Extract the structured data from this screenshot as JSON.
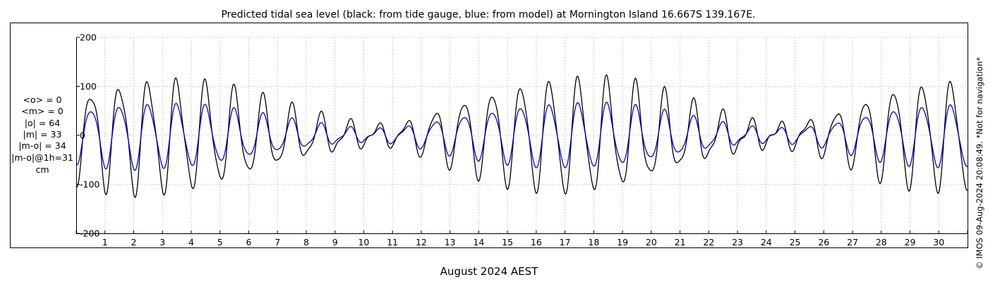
{
  "chart_data": {
    "type": "line",
    "title": "Predicted tidal sea level (black: from tide gauge, blue: from model) at Mornington Island 16.667S 139.167E.",
    "xlabel": "August 2024 AEST",
    "ylabel": "",
    "ylim": [
      -200,
      200
    ],
    "yticks": [
      -200,
      -100,
      0,
      100,
      200
    ],
    "xlim": [
      0,
      31
    ],
    "xticks": [
      1,
      2,
      3,
      4,
      5,
      6,
      7,
      8,
      9,
      10,
      11,
      12,
      13,
      14,
      15,
      16,
      17,
      18,
      19,
      20,
      21,
      22,
      23,
      24,
      25,
      26,
      27,
      28,
      29,
      30
    ],
    "grid": true,
    "tide_component_days": [
      0.0,
      1.0,
      2.0,
      3.0,
      4.0,
      5.0,
      6.0,
      7.0,
      8.0,
      9.0,
      10.0,
      11.0,
      12.0,
      13.0,
      14.0,
      15.0,
      16.0,
      17.0,
      18.0,
      19.0,
      20.0,
      21.0,
      22.0,
      23.0,
      24.0,
      25.0,
      26.0,
      27.0,
      28.0,
      29.0,
      30.0,
      31.0
    ],
    "series": [
      {
        "name": "from tide gauge",
        "color": "#000000",
        "diurnal_amplitude": [
          85,
          100,
          110,
          112,
          108,
          97,
          82,
          64,
          46,
          32,
          22,
          20,
          38,
          62,
          82,
          98,
          108,
          114,
          112,
          105,
          90,
          70,
          50,
          33,
          22,
          25,
          40,
          62,
          88,
          102,
          108,
          108
        ],
        "semidiurnal_amplitude": [
          20,
          22,
          22,
          22,
          20,
          18,
          16,
          14,
          13,
          12,
          10,
          9,
          9,
          10,
          12,
          14,
          16,
          18,
          20,
          20,
          20,
          18,
          16,
          14,
          12,
          11,
          10,
          10,
          12,
          15,
          18,
          18
        ]
      },
      {
        "name": "from model",
        "color": "#0000cc",
        "diurnal_amplitude": [
          52,
          60,
          65,
          64,
          62,
          55,
          45,
          35,
          25,
          17,
          12,
          14,
          24,
          37,
          47,
          55,
          62,
          64,
          64,
          60,
          51,
          40,
          28,
          18,
          13,
          15,
          22,
          36,
          50,
          58,
          62,
          62
        ],
        "semidiurnal_amplitude": [
          8,
          9,
          9,
          9,
          8,
          8,
          7,
          6,
          6,
          6,
          5,
          5,
          5,
          6,
          6,
          7,
          7,
          8,
          8,
          8,
          8,
          7,
          7,
          6,
          6,
          5,
          5,
          6,
          6,
          7,
          8,
          8
        ]
      }
    ]
  },
  "stats": {
    "lines": [
      "<o> = 0",
      "<m> = 0",
      "|o| = 64",
      "|m| = 33",
      "|m-o| = 34",
      "|m-o|@1h=31",
      "cm"
    ]
  },
  "credit": "© IMOS 09-Aug-2024 20:08:49. *Not for navigation*"
}
